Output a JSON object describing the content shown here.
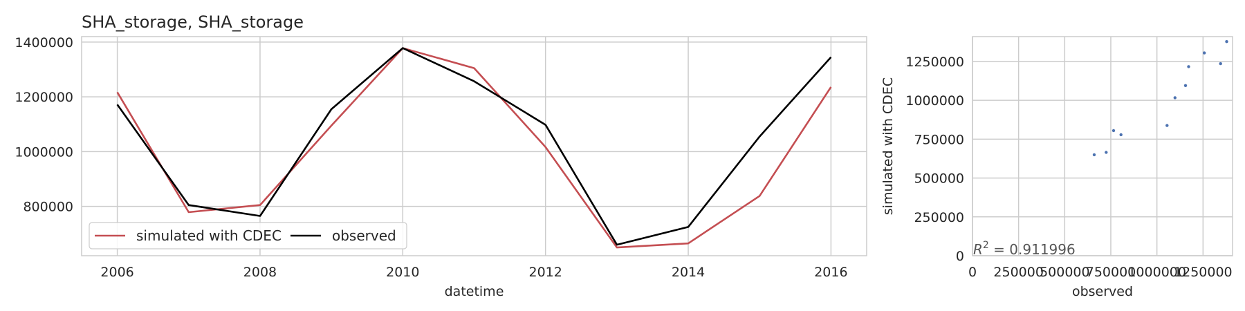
{
  "chart_data": [
    {
      "type": "line",
      "title": "SHA_storage, SHA_storage",
      "xlabel": "datetime",
      "ylabel": "",
      "x": [
        2006,
        2007,
        2008,
        2009,
        2010,
        2011,
        2012,
        2013,
        2014,
        2015,
        2016
      ],
      "xlim": [
        2005.5,
        2016.5
      ],
      "ylim": [
        620000,
        1420000
      ],
      "xticks": [
        2006,
        2008,
        2010,
        2012,
        2014,
        2016
      ],
      "yticks": [
        800000,
        1000000,
        1200000,
        1400000
      ],
      "grid": true,
      "legend_position": "lower-left",
      "series": [
        {
          "name": "simulated with CDEC",
          "color": "#c44e52",
          "values": [
            1217000,
            779000,
            805000,
            1095000,
            1378000,
            1305000,
            1017000,
            650000,
            665000,
            838000,
            1236000
          ]
        },
        {
          "name": "observed",
          "color": "#000000",
          "values": [
            1172000,
            805000,
            765000,
            1155000,
            1378000,
            1257000,
            1098000,
            660000,
            725000,
            1055000,
            1345000
          ]
        }
      ]
    },
    {
      "type": "scatter",
      "title": "",
      "xlabel": "observed",
      "ylabel": "simulated with CDEC",
      "xlim": [
        0,
        1410000
      ],
      "ylim": [
        0,
        1410000
      ],
      "xticks": [
        0,
        250000,
        500000,
        750000,
        1000000,
        1250000
      ],
      "yticks": [
        0,
        250000,
        500000,
        750000,
        1000000,
        1250000
      ],
      "grid": true,
      "color": "#4c72b0",
      "annotation": {
        "prefix": "R",
        "sup": "2",
        "text": " = 0.911996"
      },
      "points": [
        [
          660000,
          650000
        ],
        [
          725000,
          665000
        ],
        [
          765000,
          805000
        ],
        [
          805000,
          779000
        ],
        [
          1055000,
          838000
        ],
        [
          1098000,
          1017000
        ],
        [
          1155000,
          1095000
        ],
        [
          1172000,
          1217000
        ],
        [
          1257000,
          1305000
        ],
        [
          1345000,
          1236000
        ],
        [
          1378000,
          1378000
        ]
      ]
    }
  ]
}
